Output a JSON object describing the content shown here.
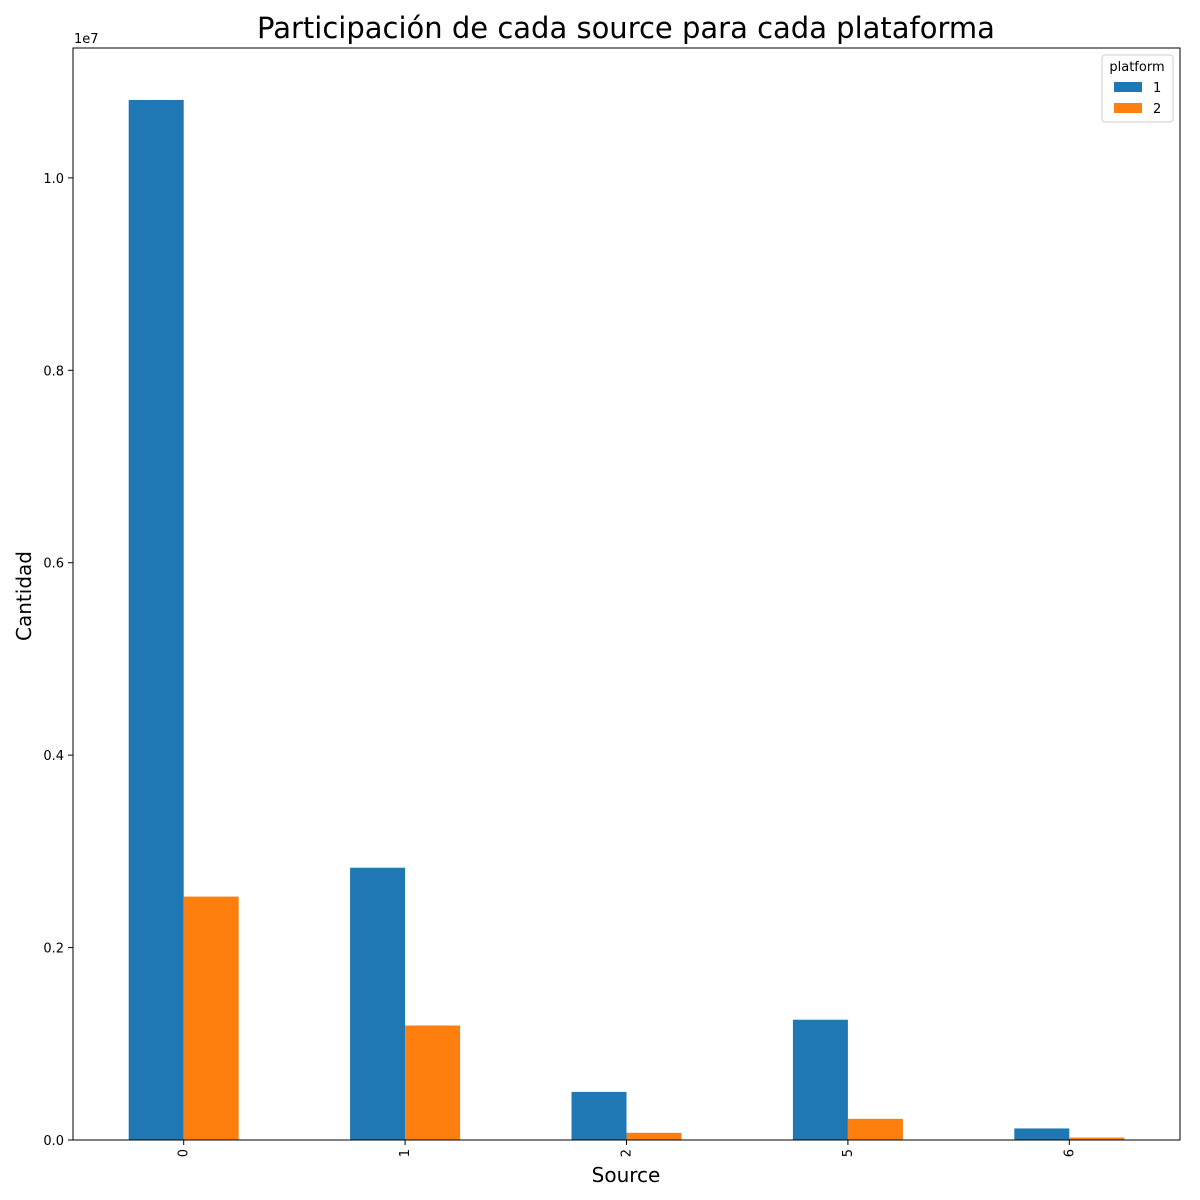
{
  "chart_data": {
    "type": "bar",
    "title": "Participación de cada source para cada plataforma",
    "xlabel": "Source",
    "ylabel": "Cantidad",
    "y_offset_text": "1e7",
    "categories": [
      "0",
      "1",
      "2",
      "5",
      "6"
    ],
    "yticks": [
      0.0,
      0.2,
      0.4,
      0.6,
      0.8,
      1.0
    ],
    "ytick_labels": [
      "0.0",
      "0.2",
      "0.4",
      "0.6",
      "0.8",
      "1.0"
    ],
    "ylim": [
      0,
      11350000
    ],
    "legend": {
      "title": "platform",
      "placement": "top-right"
    },
    "series": [
      {
        "name": "1",
        "color": "#1f77b4",
        "values": [
          10810000,
          2830000,
          500000,
          1250000,
          120000
        ]
      },
      {
        "name": "2",
        "color": "#ff7f0e",
        "values": [
          2530000,
          1190000,
          75000,
          220000,
          25000
        ]
      }
    ],
    "grid": false
  }
}
